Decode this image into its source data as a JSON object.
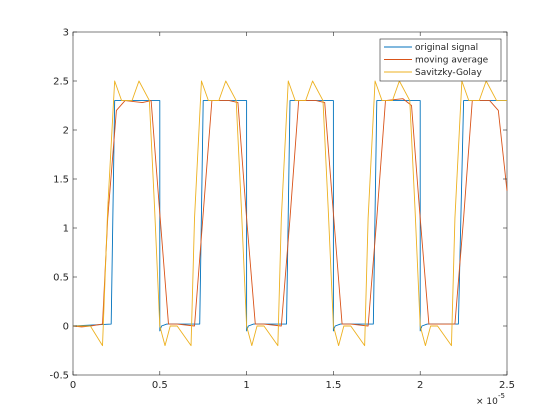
{
  "chart_data": {
    "type": "line",
    "title": "",
    "xlabel": "",
    "ylabel": "",
    "xlim": [
      0,
      2.5
    ],
    "ylim": [
      -0.5,
      3
    ],
    "x_exponent_label": "× 10",
    "x_exponent_power": "-5",
    "xticks": [
      "0",
      "0.5",
      "1",
      "1.5",
      "2",
      "2.5"
    ],
    "yticks": [
      "-0.5",
      "0",
      "0.5",
      "1",
      "1.5",
      "2",
      "2.5",
      "3"
    ],
    "grid": false,
    "legend_position": "top-right",
    "series": [
      {
        "name": "original signal",
        "color": "#0072BD",
        "x": [
          0,
          0.22,
          0.24,
          0.29,
          0.5,
          0.5,
          0.51,
          0.54,
          0.59,
          0.73,
          0.75,
          0.79,
          1.0,
          1.0,
          1.01,
          1.04,
          1.09,
          1.23,
          1.25,
          1.29,
          1.5,
          1.5,
          1.51,
          1.54,
          1.59,
          1.73,
          1.75,
          1.79,
          2.0,
          2.0,
          2.01,
          2.04,
          2.09,
          2.22,
          2.25,
          2.29,
          2.5
        ],
        "y": [
          0,
          0.02,
          2.3,
          2.3,
          2.3,
          -0.05,
          0.0,
          0.02,
          0.02,
          0.02,
          2.3,
          2.3,
          2.3,
          -0.05,
          0.0,
          0.02,
          0.02,
          0.02,
          2.3,
          2.3,
          2.3,
          -0.05,
          0.0,
          0.02,
          0.02,
          0.02,
          2.3,
          2.3,
          2.3,
          -0.05,
          0.0,
          0.02,
          0.02,
          0.02,
          2.3,
          2.3,
          2.3
        ]
      },
      {
        "name": "moving average",
        "color": "#D95319",
        "x": [
          0,
          0.05,
          0.1,
          0.17,
          0.2,
          0.25,
          0.3,
          0.4,
          0.45,
          0.5,
          0.55,
          0.6,
          0.7,
          0.75,
          0.8,
          0.9,
          0.95,
          1.0,
          1.05,
          1.1,
          1.2,
          1.25,
          1.3,
          1.4,
          1.45,
          1.5,
          1.55,
          1.6,
          1.7,
          1.75,
          1.8,
          1.9,
          1.95,
          2.0,
          2.05,
          2.1,
          2.2,
          2.25,
          2.3,
          2.4,
          2.45,
          2.5
        ],
        "y": [
          0,
          -0.01,
          0,
          0.02,
          1.1,
          2.2,
          2.3,
          2.28,
          2.3,
          1.15,
          0.02,
          0.02,
          0.0,
          1.15,
          2.3,
          2.3,
          2.28,
          1.1,
          0.02,
          0.02,
          0.0,
          1.1,
          2.3,
          2.3,
          2.28,
          1.15,
          0.02,
          0.02,
          0.0,
          1.1,
          2.3,
          2.32,
          2.25,
          1.1,
          0.02,
          0.02,
          0.02,
          1.1,
          2.3,
          2.3,
          2.2,
          1.38
        ]
      },
      {
        "name": "Savitzky-Golay",
        "color": "#EDB120",
        "x": [
          0,
          0.1,
          0.17,
          0.2,
          0.24,
          0.28,
          0.34,
          0.38,
          0.44,
          0.47,
          0.5,
          0.53,
          0.56,
          0.6,
          0.68,
          0.7,
          0.74,
          0.78,
          0.84,
          0.88,
          0.94,
          0.97,
          1.0,
          1.03,
          1.06,
          1.1,
          1.18,
          1.2,
          1.24,
          1.28,
          1.34,
          1.38,
          1.44,
          1.47,
          1.5,
          1.53,
          1.56,
          1.6,
          1.68,
          1.7,
          1.74,
          1.78,
          1.84,
          1.88,
          1.94,
          1.97,
          2.0,
          2.03,
          2.06,
          2.1,
          2.18,
          2.2,
          2.24,
          2.28,
          2.34,
          2.38,
          2.44,
          2.47,
          2.5
        ],
        "y": [
          0,
          0,
          -0.2,
          1.2,
          2.5,
          2.3,
          2.3,
          2.5,
          2.3,
          1.2,
          0.0,
          -0.2,
          0.0,
          0.0,
          -0.2,
          1.1,
          2.5,
          2.3,
          2.3,
          2.5,
          2.3,
          1.2,
          0.0,
          -0.2,
          0.0,
          0.0,
          -0.2,
          1.1,
          2.5,
          2.3,
          2.3,
          2.5,
          2.3,
          1.2,
          0.0,
          -0.2,
          0.0,
          0.0,
          -0.2,
          1.1,
          2.5,
          2.3,
          2.3,
          2.5,
          2.3,
          1.2,
          0.0,
          -0.2,
          0.0,
          0.0,
          -0.2,
          1.1,
          2.5,
          2.3,
          2.3,
          2.5,
          2.3,
          2.3,
          2.3
        ]
      }
    ]
  }
}
